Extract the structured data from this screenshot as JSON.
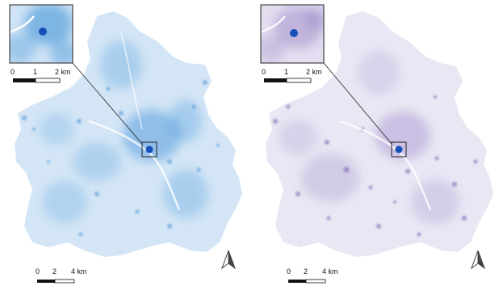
{
  "maps": [
    {
      "id": "left",
      "color": "#3a8fd6",
      "marker_color": "#1750b8",
      "inset_scalebar": {
        "ticks": [
          "0",
          "1",
          "2 km"
        ]
      },
      "main_scalebar": {
        "ticks": [
          "0",
          "2",
          "4 km"
        ]
      },
      "north_arrow_icon": "north-arrow-icon"
    },
    {
      "id": "right",
      "color": "#7d68b8",
      "marker_color": "#1750b8",
      "inset_scalebar": {
        "ticks": [
          "0",
          "1",
          "2 km"
        ]
      },
      "main_scalebar": {
        "ticks": [
          "0",
          "2",
          "4 km"
        ]
      },
      "north_arrow_icon": "north-arrow-icon"
    }
  ]
}
